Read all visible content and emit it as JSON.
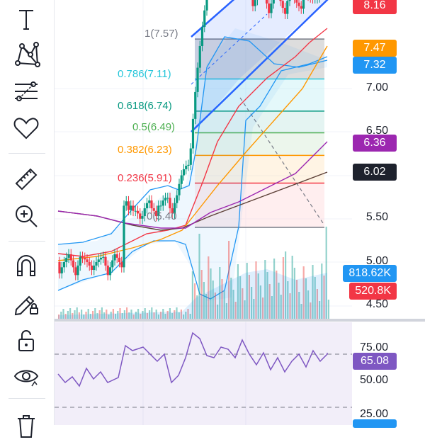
{
  "toolbar": {
    "tools": [
      {
        "name": "text-tool",
        "icon": "text-icon"
      },
      {
        "name": "pattern-tool",
        "icon": "xabcd-pattern-icon"
      },
      {
        "name": "fibonacci-tool",
        "icon": "fib-levels-icon"
      },
      {
        "name": "favorites-tool",
        "icon": "heart-icon"
      },
      {
        "name": "measure-tool",
        "icon": "ruler-icon"
      },
      {
        "name": "zoom-tool",
        "icon": "zoom-in-icon"
      },
      {
        "name": "magnet-tool",
        "icon": "magnet-icon"
      },
      {
        "name": "lock-drawing-tool",
        "icon": "pencil-lock-icon"
      },
      {
        "name": "unlock-tool",
        "icon": "unlock-icon"
      },
      {
        "name": "visibility-tool",
        "icon": "eye-icon"
      },
      {
        "name": "delete-tool",
        "icon": "trash-icon"
      }
    ]
  },
  "fib_levels": [
    {
      "label": "1(7.57)",
      "color": "#787b86"
    },
    {
      "label": "0.786(7.11)",
      "color": "#26c6da"
    },
    {
      "label": "0.618(6.74)",
      "color": "#089981"
    },
    {
      "label": "0.5(6.49)",
      "color": "#4caf50"
    },
    {
      "label": "0.382(6.23)",
      "color": "#ff9800"
    },
    {
      "label": "0.236(5.91)",
      "color": "#f23645"
    }
  ],
  "fib_partial_label": "0(5.40",
  "price_axis_ticks": [
    "7.00",
    "6.50",
    "5.50",
    "5.00",
    "4.50"
  ],
  "price_labels": [
    {
      "text": "8.16",
      "color": "#f23645"
    },
    {
      "text": "7.47",
      "color": "#ff9800"
    },
    {
      "text": "7.32",
      "color": "#2196f3"
    },
    {
      "text": "6.36",
      "color": "#9c27b0"
    },
    {
      "text": "6.02",
      "color": "#1e222d"
    }
  ],
  "volume_labels": [
    {
      "text": "818.62K",
      "color": "#2196f3"
    },
    {
      "text": "520.8K",
      "color": "#f23645"
    }
  ],
  "rsi_axis_ticks": [
    "75.00",
    "50.00",
    "25.00"
  ],
  "rsi_label": {
    "text": "65.08",
    "color": "#7e57c2"
  },
  "colors": {
    "up": "#089981",
    "down": "#f23645",
    "rsi": "#7e57c2",
    "bollinger": "#2196f3"
  }
}
